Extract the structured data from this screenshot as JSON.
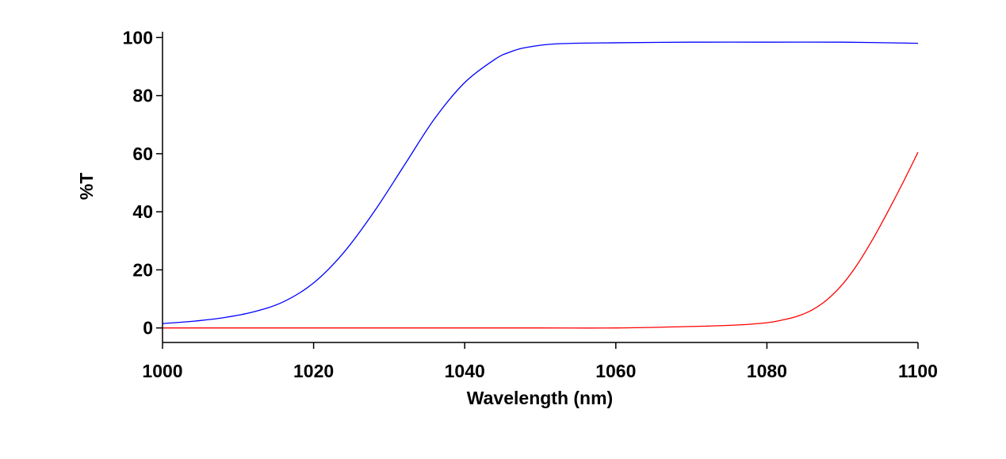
{
  "chart_data": {
    "type": "line",
    "title": "",
    "xlabel": "Wavelength (nm)",
    "ylabel": "%T",
    "xlim": [
      1000,
      1100
    ],
    "ylim": [
      -5,
      102
    ],
    "xticks": [
      1000,
      1020,
      1040,
      1060,
      1080,
      1100
    ],
    "yticks": [
      0,
      20,
      40,
      60,
      80,
      100
    ],
    "grid": false,
    "legend": "none",
    "series": [
      {
        "color": "#0000ff",
        "x": [
          1000,
          1004,
          1008,
          1012,
          1016,
          1020,
          1024,
          1028,
          1032,
          1036,
          1040,
          1044,
          1046,
          1048,
          1052,
          1060,
          1070,
          1080,
          1090,
          1100
        ],
        "y": [
          1.5,
          2.3,
          3.5,
          5.5,
          9.0,
          15.5,
          26.0,
          40.0,
          56.0,
          72.0,
          84.5,
          92.5,
          95.0,
          96.5,
          97.8,
          98.2,
          98.4,
          98.4,
          98.4,
          98.0
        ]
      },
      {
        "color": "#ff0000",
        "x": [
          1000,
          1010,
          1020,
          1030,
          1040,
          1050,
          1060,
          1070,
          1076,
          1080,
          1082,
          1084,
          1086,
          1088,
          1090,
          1092,
          1094,
          1096,
          1098,
          1100
        ],
        "y": [
          0,
          0,
          0,
          0,
          0,
          0,
          0,
          0.5,
          1.0,
          1.8,
          2.7,
          4.0,
          6.2,
          9.8,
          15.0,
          22.0,
          30.5,
          40.0,
          50.0,
          60.5
        ]
      }
    ]
  }
}
